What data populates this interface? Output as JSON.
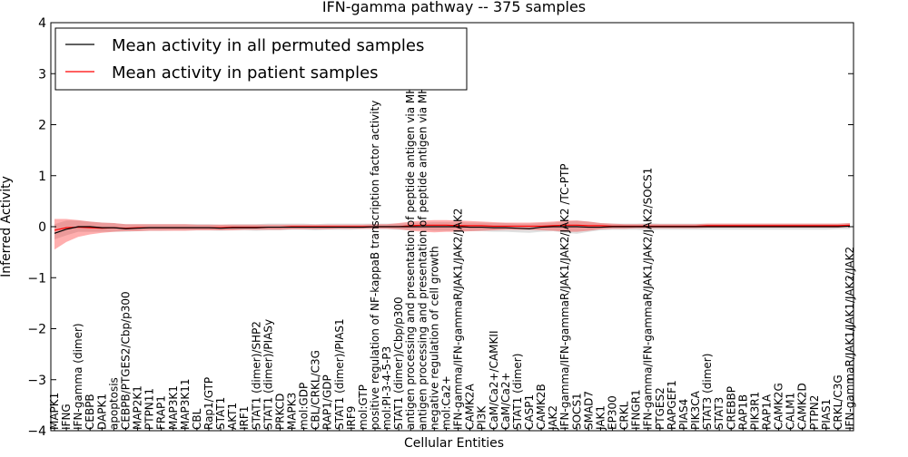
{
  "chart_data": {
    "type": "line",
    "title": "IFN-gamma pathway -- 375 samples",
    "xlabel": "Cellular Entities",
    "ylabel": "Inferred Activity",
    "ylim": [
      -4,
      4
    ],
    "yticks": [
      "−4",
      "−3",
      "−2",
      "−1",
      "0",
      "1",
      "2",
      "3",
      "4"
    ],
    "grid": false,
    "legend_position": "top-left",
    "categories": [
      "MAPK1",
      "IFNG",
      "IFN-gamma (dimer)",
      "CEBPB",
      "DAPK1",
      "apoptosis",
      "CEBPB/PTGES2/Cbp/p300",
      "MAP2K1",
      "PTPN11",
      "FRAP1",
      "MAP3K1",
      "MAP3K11",
      "CBL",
      "Rap1/GTP",
      "STAT1",
      "AKT1",
      "IRF1",
      "STAT1 (dimer)/SHP2",
      "STAT1 (dimer)/PIASy",
      "PRKCD",
      "MAPK3",
      "mol:GDP",
      "CBL/CRKL/C3G",
      "RAP1/GDP",
      "STAT1 (dimer)/PIAS1",
      "IRF9",
      "mol:GTP",
      "positive regulation of NF-kappaB transcription factor activity",
      "mol:PI-3-4-5-P3",
      "STAT1 (dimer)/Cbp/p300",
      "antigen processing and presentation of peptide antigen via MHC class I",
      "antigen processing and presentation of peptide antigen via MHC class II",
      "negative regulation of cell growth",
      "mol:Ca2+",
      "IFN-gamma/IFN-gammaR/JAK1/JAK2/JAK2",
      "CAMK2A",
      "PI3K",
      "CaM/Ca2+/CAMKII",
      "CaM/Ca2+",
      "STAT1 (dimer)",
      "CASP1",
      "CAMK2B",
      "JAK2",
      "IFN-gamma/IFN-gammaR/JAK1/JAK2/JAK2 /TC-PTP",
      "SOCS1",
      "SMAD7",
      "JAK1",
      "EP300",
      "CRKL",
      "IFNGR1",
      "IFN-gamma/IFN-gammaR/JAK1/JAK2/JAK2/SOCS1",
      "PTGES2",
      "RAPGEF1",
      "PIAS4",
      "PIK3CA",
      "STAT3 (dimer)",
      "STAT3",
      "CREBBP",
      "RAP1B",
      "PIK3R1",
      "RAP1A",
      "CAMK2G",
      "CALM1",
      "CAMK2D",
      "PTPN2",
      "PIAS1",
      "CRKL/C3G",
      "IFN-gammaR/JAK1/JAK1/JAK2/JAK2"
    ],
    "series": [
      {
        "name": "Mean activity in all permuted samples",
        "color": "#000000",
        "values": [
          -0.13,
          -0.05,
          0.0,
          0.0,
          -0.02,
          -0.02,
          -0.04,
          -0.03,
          -0.02,
          -0.02,
          -0.02,
          -0.02,
          -0.02,
          -0.02,
          -0.03,
          -0.02,
          -0.02,
          -0.02,
          -0.01,
          -0.01,
          -0.01,
          -0.01,
          -0.01,
          -0.01,
          -0.01,
          -0.01,
          -0.01,
          0.0,
          0.0,
          0.0,
          0.0,
          0.0,
          0.0,
          0.0,
          0.0,
          -0.01,
          -0.01,
          -0.02,
          -0.02,
          -0.03,
          -0.04,
          -0.01,
          0.0,
          0.0,
          0.0,
          -0.01,
          -0.01,
          0.0,
          0.0,
          0.0,
          0.0,
          0.0,
          0.0,
          0.0,
          0.0,
          0.0,
          0.0,
          0.0,
          0.0,
          0.0,
          0.0,
          0.0,
          0.0,
          0.0,
          0.0,
          0.0,
          0.0,
          0.01
        ],
        "band_low": [
          -0.25,
          -0.17,
          -0.1,
          -0.1,
          -0.1,
          -0.1,
          -0.1,
          -0.09,
          -0.08,
          -0.08,
          -0.07,
          -0.07,
          -0.07,
          -0.07,
          -0.08,
          -0.07,
          -0.07,
          -0.08,
          -0.07,
          -0.07,
          -0.06,
          -0.06,
          -0.07,
          -0.06,
          -0.06,
          -0.06,
          -0.05,
          -0.05,
          -0.05,
          -0.06,
          -0.06,
          -0.06,
          -0.08,
          -0.08,
          -0.08,
          -0.09,
          -0.09,
          -0.1,
          -0.1,
          -0.11,
          -0.12,
          -0.1,
          -0.09,
          -0.12,
          -0.14,
          -0.1,
          -0.07,
          -0.06,
          -0.06,
          -0.06,
          -0.07,
          -0.06,
          -0.06,
          -0.06,
          -0.06,
          -0.06,
          -0.06,
          -0.06,
          -0.06,
          -0.06,
          -0.06,
          -0.06,
          -0.06,
          -0.06,
          -0.06,
          -0.06,
          -0.05,
          -0.05
        ],
        "band_high": [
          0.05,
          0.12,
          0.12,
          0.1,
          0.08,
          0.07,
          0.05,
          0.05,
          0.05,
          0.05,
          0.05,
          0.05,
          0.05,
          0.05,
          0.04,
          0.05,
          0.05,
          0.05,
          0.06,
          0.06,
          0.06,
          0.06,
          0.05,
          0.06,
          0.06,
          0.06,
          0.06,
          0.06,
          0.06,
          0.06,
          0.07,
          0.08,
          0.09,
          0.09,
          0.09,
          0.08,
          0.08,
          0.07,
          0.07,
          0.06,
          0.06,
          0.07,
          0.08,
          0.1,
          0.12,
          0.1,
          0.07,
          0.06,
          0.06,
          0.06,
          0.07,
          0.06,
          0.06,
          0.06,
          0.06,
          0.06,
          0.06,
          0.06,
          0.06,
          0.06,
          0.06,
          0.06,
          0.06,
          0.06,
          0.06,
          0.06,
          0.06,
          0.07
        ]
      },
      {
        "name": "Mean activity in patient samples",
        "color": "#ff0000",
        "values": [
          -0.07,
          -0.02,
          -0.01,
          -0.02,
          -0.03,
          -0.02,
          -0.03,
          -0.02,
          -0.02,
          -0.02,
          -0.02,
          -0.02,
          -0.02,
          -0.02,
          -0.02,
          -0.01,
          -0.01,
          -0.01,
          -0.01,
          -0.01,
          0.0,
          0.0,
          0.0,
          0.0,
          0.0,
          0.0,
          0.0,
          0.0,
          0.0,
          0.0,
          0.02,
          0.03,
          0.03,
          0.03,
          0.02,
          0.02,
          0.02,
          0.01,
          0.01,
          0.01,
          0.01,
          0.01,
          0.02,
          0.03,
          0.03,
          0.02,
          0.02,
          0.01,
          0.01,
          0.01,
          0.01,
          0.01,
          0.01,
          0.01,
          0.01,
          0.02,
          0.02,
          0.02,
          0.02,
          0.02,
          0.02,
          0.02,
          0.02,
          0.02,
          0.02,
          0.02,
          0.02,
          0.03
        ],
        "band_low": [
          -0.45,
          -0.3,
          -0.2,
          -0.15,
          -0.12,
          -0.1,
          -0.09,
          -0.09,
          -0.08,
          -0.08,
          -0.08,
          -0.08,
          -0.07,
          -0.07,
          -0.07,
          -0.07,
          -0.06,
          -0.06,
          -0.06,
          -0.06,
          -0.05,
          -0.05,
          -0.05,
          -0.05,
          -0.04,
          -0.04,
          -0.04,
          -0.04,
          -0.04,
          -0.05,
          -0.08,
          -0.1,
          -0.11,
          -0.1,
          -0.1,
          -0.09,
          -0.08,
          -0.07,
          -0.06,
          -0.06,
          -0.06,
          -0.07,
          -0.08,
          -0.1,
          -0.1,
          -0.08,
          -0.05,
          -0.04,
          -0.04,
          -0.03,
          -0.03,
          -0.03,
          -0.03,
          -0.03,
          -0.03,
          -0.02,
          -0.02,
          -0.02,
          -0.02,
          -0.02,
          -0.02,
          -0.02,
          -0.02,
          -0.02,
          -0.02,
          -0.02,
          -0.02,
          -0.01
        ],
        "band_high": [
          0.15,
          0.15,
          0.13,
          0.1,
          0.08,
          0.07,
          0.05,
          0.05,
          0.05,
          0.05,
          0.05,
          0.05,
          0.04,
          0.04,
          0.04,
          0.04,
          0.04,
          0.04,
          0.04,
          0.04,
          0.04,
          0.04,
          0.04,
          0.04,
          0.04,
          0.04,
          0.04,
          0.05,
          0.05,
          0.07,
          0.1,
          0.12,
          0.13,
          0.13,
          0.12,
          0.11,
          0.1,
          0.09,
          0.08,
          0.08,
          0.08,
          0.09,
          0.1,
          0.12,
          0.12,
          0.1,
          0.07,
          0.06,
          0.05,
          0.05,
          0.05,
          0.05,
          0.05,
          0.05,
          0.05,
          0.06,
          0.06,
          0.06,
          0.06,
          0.06,
          0.06,
          0.06,
          0.06,
          0.06,
          0.06,
          0.06,
          0.06,
          0.07
        ]
      }
    ]
  }
}
